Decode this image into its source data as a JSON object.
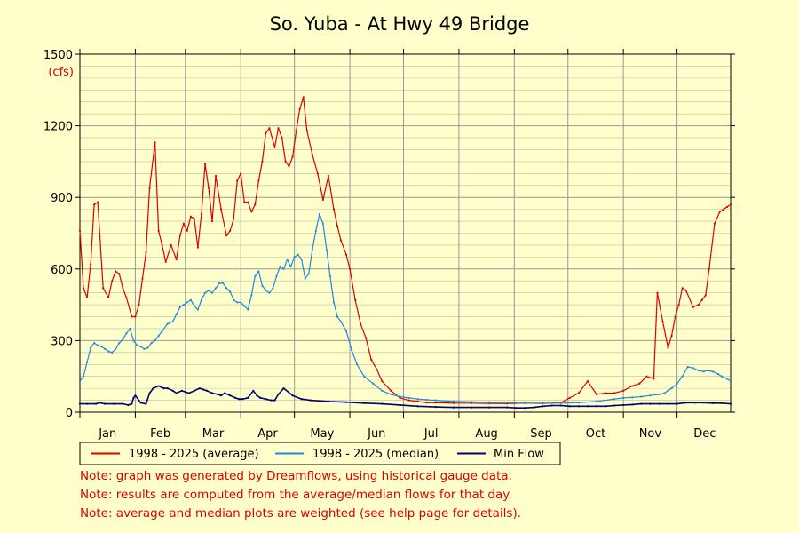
{
  "chart_data": {
    "type": "line",
    "title": "So. Yuba - At Hwy 49 Bridge",
    "ylabel": "(cfs)",
    "xlabel": "",
    "ylim": [
      0,
      1500
    ],
    "xlim": [
      1,
      365
    ],
    "y_ticks": [
      0,
      300,
      600,
      900,
      1200,
      1500
    ],
    "x_tick_labels": [
      "Jan",
      "Feb",
      "Mar",
      "Apr",
      "May",
      "Jun",
      "Jul",
      "Aug",
      "Sep",
      "Oct",
      "Nov",
      "Dec"
    ],
    "month_start_days": [
      1,
      32,
      60,
      91,
      121,
      152,
      182,
      213,
      244,
      274,
      305,
      335
    ],
    "grid": true,
    "legend_position": "bottom",
    "x_unit": "day of year",
    "series": [
      {
        "name": "1998 - 2025 (average)",
        "color": "#dd0000",
        "x": [
          1,
          3,
          5,
          7,
          9,
          11,
          14,
          17,
          19,
          21,
          23,
          25,
          27,
          30,
          32,
          34,
          36,
          38,
          40,
          43,
          45,
          47,
          49,
          52,
          55,
          57,
          59,
          61,
          63,
          65,
          67,
          69,
          71,
          73,
          75,
          77,
          80,
          83,
          85,
          87,
          89,
          91,
          93,
          95,
          97,
          99,
          101,
          103,
          105,
          107,
          110,
          112,
          114,
          116,
          118,
          120,
          122,
          124,
          126,
          128,
          131,
          134,
          137,
          140,
          143,
          145,
          147,
          150,
          152,
          155,
          158,
          161,
          164,
          167,
          170,
          175,
          180,
          185,
          190,
          195,
          200,
          210,
          220,
          230,
          240,
          250,
          260,
          270,
          275,
          280,
          285,
          290,
          295,
          300,
          305,
          310,
          314,
          318,
          322,
          324,
          327,
          330,
          332,
          334,
          336,
          338,
          340,
          344,
          347,
          349,
          351,
          353,
          356,
          359,
          361,
          363,
          365
        ],
        "values": [
          760,
          520,
          480,
          620,
          870,
          880,
          520,
          480,
          550,
          590,
          580,
          520,
          480,
          400,
          400,
          450,
          560,
          670,
          940,
          1130,
          760,
          700,
          630,
          700,
          640,
          740,
          790,
          760,
          820,
          810,
          690,
          830,
          1040,
          940,
          800,
          990,
          850,
          740,
          760,
          810,
          970,
          1000,
          880,
          880,
          840,
          870,
          970,
          1050,
          1170,
          1190,
          1110,
          1190,
          1150,
          1050,
          1030,
          1070,
          1180,
          1270,
          1320,
          1180,
          1080,
          1000,
          890,
          990,
          850,
          780,
          720,
          660,
          600,
          470,
          370,
          310,
          220,
          180,
          130,
          90,
          60,
          50,
          45,
          40,
          40,
          38,
          38,
          37,
          36,
          38,
          37,
          40,
          60,
          80,
          130,
          75,
          80,
          80,
          90,
          110,
          120,
          150,
          140,
          500,
          380,
          270,
          320,
          400,
          450,
          520,
          510,
          440,
          450,
          470,
          490,
          600,
          790,
          840,
          850,
          860,
          870
        ]
      },
      {
        "name": "1998 - 2025 (median)",
        "color": "#2288dd",
        "x": [
          1,
          3,
          5,
          7,
          9,
          11,
          13,
          15,
          17,
          19,
          21,
          23,
          25,
          27,
          29,
          31,
          33,
          35,
          37,
          39,
          41,
          43,
          45,
          47,
          50,
          53,
          55,
          57,
          59,
          61,
          63,
          65,
          67,
          69,
          71,
          73,
          75,
          77,
          79,
          81,
          83,
          85,
          87,
          89,
          91,
          93,
          95,
          97,
          99,
          101,
          103,
          105,
          107,
          109,
          111,
          113,
          115,
          117,
          119,
          121,
          123,
          125,
          127,
          129,
          131,
          133,
          135,
          137,
          139,
          141,
          143,
          145,
          147,
          150,
          153,
          156,
          160,
          165,
          170,
          175,
          180,
          185,
          190,
          195,
          200,
          210,
          220,
          230,
          240,
          250,
          260,
          270,
          280,
          290,
          300,
          305,
          310,
          315,
          320,
          325,
          328,
          330,
          332,
          335,
          338,
          341,
          344,
          347,
          350,
          352,
          355,
          358,
          360,
          363,
          365
        ],
        "values": [
          130,
          150,
          210,
          270,
          290,
          280,
          275,
          265,
          255,
          250,
          265,
          290,
          305,
          330,
          350,
          300,
          280,
          275,
          265,
          270,
          290,
          300,
          320,
          340,
          370,
          380,
          410,
          440,
          450,
          460,
          470,
          445,
          430,
          470,
          500,
          510,
          500,
          520,
          540,
          540,
          520,
          505,
          470,
          460,
          460,
          445,
          430,
          490,
          570,
          590,
          530,
          510,
          500,
          520,
          570,
          610,
          600,
          640,
          610,
          650,
          660,
          640,
          560,
          580,
          680,
          760,
          830,
          790,
          680,
          570,
          460,
          400,
          380,
          340,
          260,
          200,
          150,
          120,
          90,
          75,
          65,
          60,
          55,
          52,
          50,
          45,
          43,
          42,
          40,
          38,
          38,
          38,
          40,
          45,
          55,
          60,
          62,
          65,
          70,
          75,
          80,
          90,
          100,
          120,
          150,
          190,
          185,
          175,
          170,
          175,
          170,
          160,
          150,
          140,
          130
        ]
      },
      {
        "name": "Min Flow",
        "color": "#000077",
        "x": [
          1,
          5,
          10,
          12,
          15,
          20,
          25,
          28,
          30,
          31,
          32,
          35,
          38,
          40,
          42,
          45,
          48,
          50,
          53,
          55,
          58,
          60,
          62,
          65,
          68,
          70,
          72,
          75,
          78,
          80,
          82,
          85,
          88,
          90,
          92,
          95,
          98,
          100,
          102,
          105,
          108,
          110,
          112,
          115,
          120,
          125,
          130,
          140,
          150,
          160,
          170,
          180,
          190,
          200,
          210,
          220,
          230,
          240,
          245,
          250,
          255,
          260,
          265,
          270,
          275,
          280,
          285,
          290,
          295,
          300,
          305,
          310,
          315,
          320,
          325,
          330,
          335,
          340,
          345,
          350,
          355,
          360,
          365
        ],
        "values": [
          35,
          35,
          35,
          40,
          35,
          35,
          35,
          30,
          35,
          60,
          70,
          40,
          35,
          80,
          100,
          110,
          100,
          100,
          90,
          80,
          90,
          85,
          80,
          90,
          100,
          95,
          90,
          80,
          75,
          70,
          80,
          70,
          60,
          55,
          55,
          60,
          90,
          70,
          60,
          55,
          50,
          50,
          75,
          100,
          70,
          55,
          50,
          45,
          42,
          38,
          35,
          30,
          25,
          22,
          20,
          20,
          20,
          20,
          18,
          18,
          20,
          25,
          28,
          28,
          25,
          25,
          25,
          25,
          25,
          28,
          30,
          32,
          35,
          35,
          35,
          35,
          35,
          40,
          40,
          40,
          38,
          38,
          35
        ]
      }
    ]
  },
  "notes": [
    "Note: graph was generated by Dreamflows, using historical gauge data.",
    "Note: results are computed from the average/median flows for that day.",
    "Note: average and median plots are weighted (see help page for details)."
  ],
  "colors": {
    "background": "#ffffcc",
    "grid": "#999999",
    "note_text": "#dd0000",
    "unit_text": "#dd0000"
  }
}
